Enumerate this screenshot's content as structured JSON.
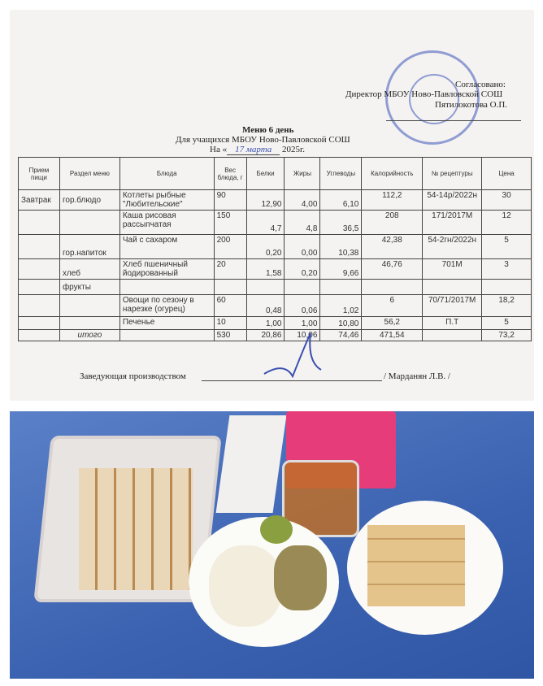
{
  "approval": {
    "line1": "Согласовано:",
    "line2": "Директор МБОУ Ново-Павловской СОШ",
    "line3": "Пятилокотова О.П."
  },
  "title": {
    "menu": "Меню 6 день",
    "for": "Для учащихся МБОУ Ново-Павловской СОШ",
    "date_prefix": "На «",
    "date_hand": "17 марта",
    "date_suffix": "2025г."
  },
  "table": {
    "headers": [
      "Прием пищи",
      "Раздел меню",
      "Блюда",
      "Вес блюда, г",
      "Белки",
      "Жиры",
      "Углеводы",
      "Калорийность",
      "№ рецептуры",
      "Цена"
    ],
    "rows": [
      [
        "Завтрак",
        "гор.блюдо",
        "Котлеты рыбные \"Любительские\"",
        "90",
        "12,90",
        "4,00",
        "6,10",
        "112,2",
        "54-14р/2022н",
        "30"
      ],
      [
        "",
        "",
        "Каша рисовая рассыпчатая",
        "150",
        "4,7",
        "4,8",
        "36,5",
        "208",
        "171/2017М",
        "12"
      ],
      [
        "",
        "гор.напиток",
        "Чай с сахаром",
        "200",
        "0,20",
        "0,00",
        "10,38",
        "42,38",
        "54-2гн/2022н",
        "5"
      ],
      [
        "",
        "хлеб",
        "Хлеб пшеничный йодированный",
        "20",
        "1,58",
        "0,20",
        "9,66",
        "46,76",
        "701М",
        "3"
      ],
      [
        "",
        "фрукты",
        "",
        "",
        "",
        "",
        "",
        "",
        "",
        ""
      ],
      [
        "",
        "",
        "Овощи по сезону в нарезке (огурец)",
        "60",
        "0,48",
        "0,06",
        "1,02",
        "6",
        "70/71/2017М",
        "18,2"
      ],
      [
        "",
        "",
        "Печенье",
        "10",
        "1,00",
        "1,00",
        "10,80",
        "56,2",
        "П.Т",
        "5"
      ],
      [
        "",
        "итого",
        "",
        "530",
        "20,86",
        "10,06",
        "74,46",
        "471,54",
        "",
        "73,2"
      ]
    ]
  },
  "footer": {
    "label": "Заведующая производством",
    "name": "/ Марданян Л.В. /"
  },
  "colors": {
    "stamp": "#6f7fc8",
    "ink": "#3a4fb0",
    "table_bg": "#5a80c8"
  }
}
